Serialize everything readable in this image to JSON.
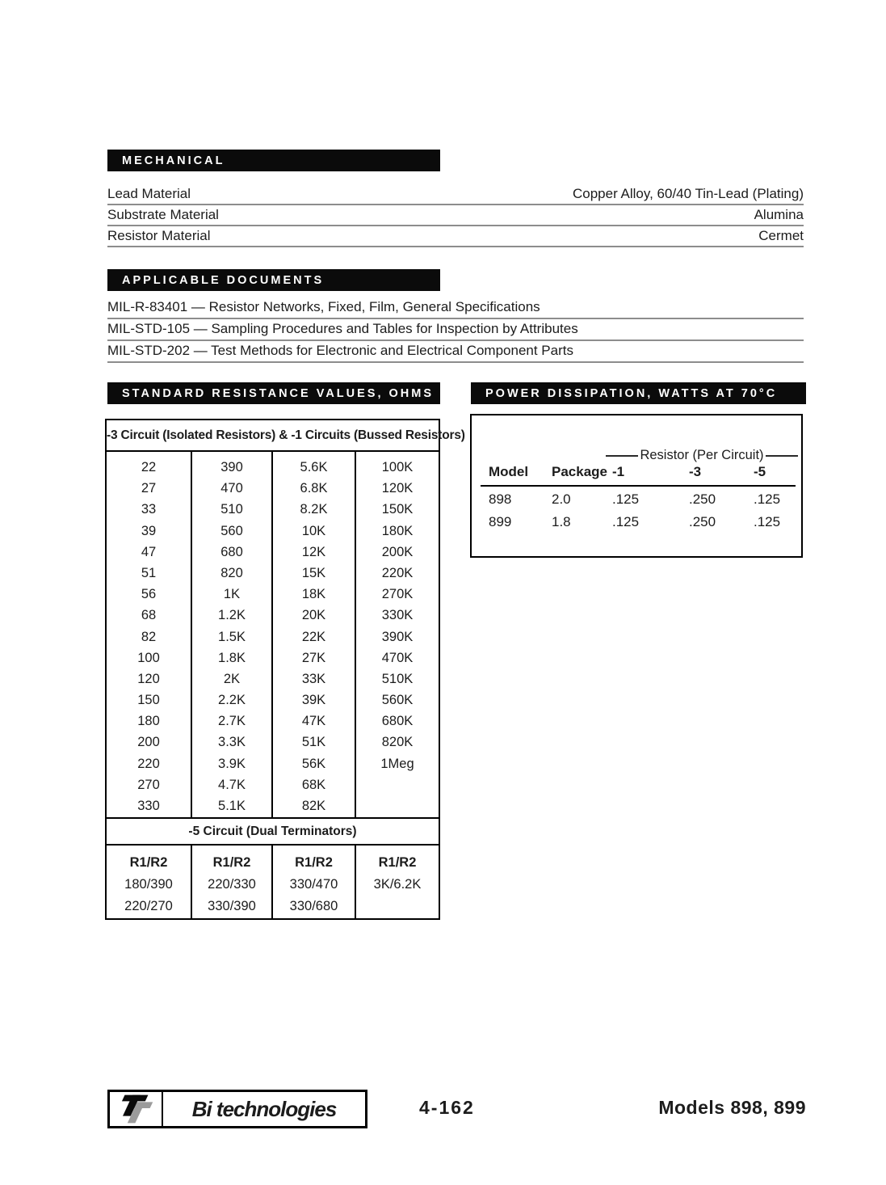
{
  "sections": {
    "mechanical": {
      "title": "MECHANICAL",
      "rows": [
        {
          "label": "Lead Material",
          "value": "Copper Alloy, 60/40 Tin-Lead (Plating)"
        },
        {
          "label": "Substrate Material",
          "value": "Alumina"
        },
        {
          "label": "Resistor Material",
          "value": "Cermet"
        }
      ]
    },
    "applicable_documents": {
      "title": "APPLICABLE DOCUMENTS",
      "items": [
        "MIL-R-83401 — Resistor Networks, Fixed, Film, General Specifications",
        "MIL-STD-105 — Sampling Procedures and Tables for Inspection by Attributes",
        "MIL-STD-202 — Test Methods for Electronic and Electrical Component Parts"
      ]
    },
    "standard_resistance": {
      "title": "STANDARD RESISTANCE VALUES, OHMS",
      "table_header": "-3 Circuit (Isolated Resistors) & -1 Circuits (Bussed Resistors)",
      "columns": [
        [
          "22",
          "27",
          "33",
          "39",
          "47",
          "51",
          "56",
          "68",
          "82",
          "100",
          "120",
          "150",
          "180",
          "200",
          "220",
          "270",
          "330"
        ],
        [
          "390",
          "470",
          "510",
          "560",
          "680",
          "820",
          "1K",
          "1.2K",
          "1.5K",
          "1.8K",
          "2K",
          "2.2K",
          "2.7K",
          "3.3K",
          "3.9K",
          "4.7K",
          "5.1K"
        ],
        [
          "5.6K",
          "6.8K",
          "8.2K",
          "10K",
          "12K",
          "15K",
          "18K",
          "20K",
          "22K",
          "27K",
          "33K",
          "39K",
          "47K",
          "51K",
          "56K",
          "68K",
          "82K"
        ],
        [
          "100K",
          "120K",
          "150K",
          "180K",
          "200K",
          "220K",
          "270K",
          "330K",
          "390K",
          "470K",
          "510K",
          "560K",
          "680K",
          "820K",
          "1Meg"
        ]
      ],
      "dual_header": "-5 Circuit (Dual Terminators)",
      "dual_columns": [
        [
          "R1/R2",
          "180/390",
          "220/270"
        ],
        [
          "R1/R2",
          "220/330",
          "330/390"
        ],
        [
          "R1/R2",
          "330/470",
          "330/680"
        ],
        [
          "R1/R2",
          "3K/6.2K"
        ]
      ]
    },
    "power_dissipation": {
      "title": "POWER DISSIPATION, WATTS AT 70°C",
      "span_header": "Resistor (Per Circuit)",
      "col_headers": [
        "Model",
        "Package",
        "-1",
        "-3",
        "-5"
      ],
      "rows": [
        [
          "898",
          "2.0",
          ".125",
          ".250",
          ".125"
        ],
        [
          "899",
          "1.8",
          ".125",
          ".250",
          ".125"
        ]
      ]
    }
  },
  "footer": {
    "logo_text": "Bi technologies",
    "logo_icon": "tt-logo-icon",
    "page_number": "4-162",
    "models": "Models 898, 899"
  }
}
